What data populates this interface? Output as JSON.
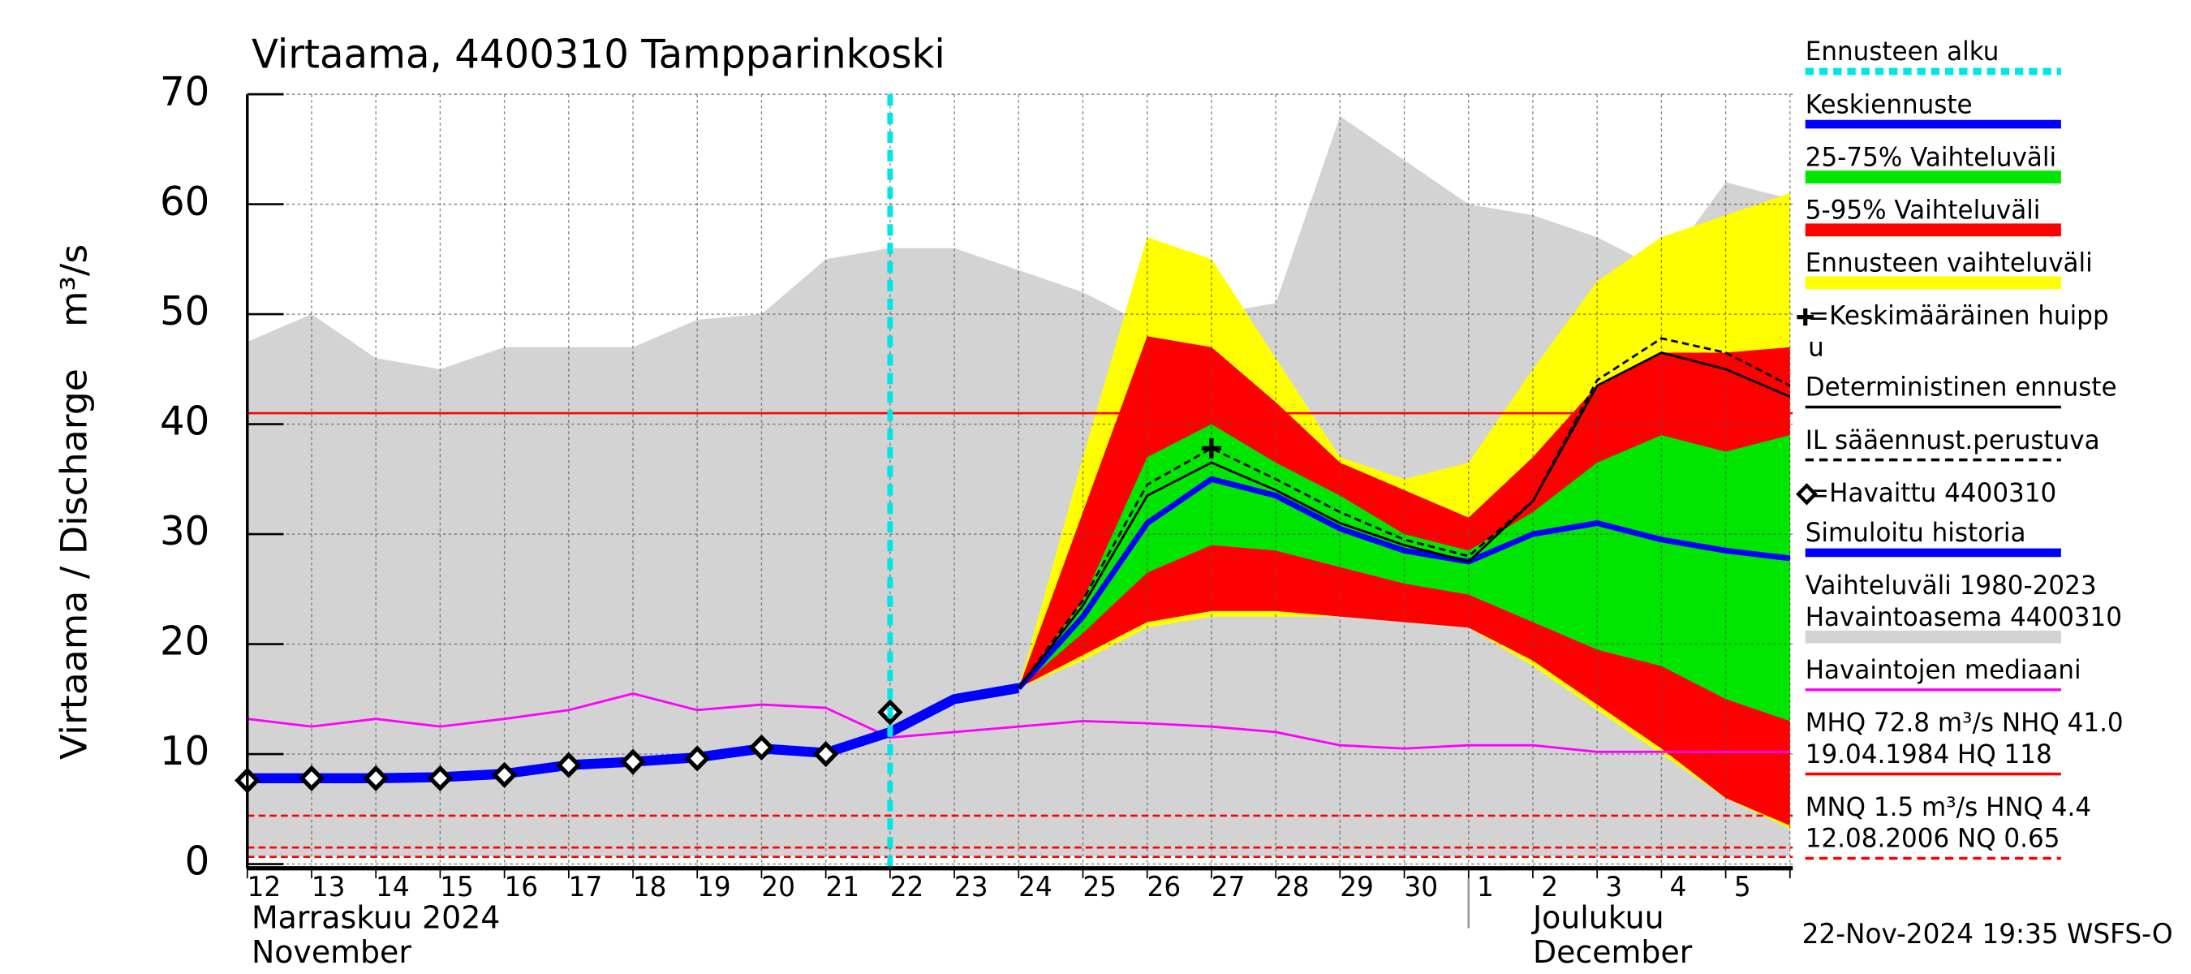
{
  "chart_data": {
    "type": "hydrograph",
    "title": "Virtaama, 4400310 Tampparinkoski",
    "y_label": "Virtaama / Discharge",
    "y_unit": "m³/s",
    "month_labels": [
      {
        "lines": [
          "Marraskuu 2024",
          "November"
        ],
        "at": "12"
      },
      {
        "lines": [
          "Joulukuu",
          "December"
        ],
        "at": "1"
      }
    ],
    "footer": "22-Nov-2024 19:35 WSFS-O",
    "categories": [
      "12",
      "13",
      "14",
      "15",
      "16",
      "17",
      "18",
      "19",
      "20",
      "21",
      "22",
      "23",
      "24",
      "25",
      "26",
      "27",
      "28",
      "29",
      "30",
      "1",
      "2",
      "3",
      "4",
      "5",
      null
    ],
    "ylim": [
      0,
      70
    ],
    "yticks": [
      0,
      10,
      20,
      30,
      40,
      50,
      60,
      70
    ],
    "grid": true,
    "forecast_start": "22",
    "forecast_start_color": "#00e5e5",
    "series": [
      {
        "kind": "band",
        "color": "#d3d3d3",
        "upper": [
          47.5,
          50,
          46,
          45,
          47,
          47,
          47,
          49.5,
          50,
          55,
          56,
          56,
          54,
          52,
          49,
          50,
          51,
          68,
          64,
          60,
          59,
          57,
          54,
          62,
          60.5
        ],
        "lower": [
          0.7,
          0.7,
          0.7,
          0.7,
          0.7,
          0.7,
          0.7,
          0.7,
          0.7,
          0.7,
          0.7,
          0.7,
          0.7,
          0.7,
          0.7,
          0.7,
          0.7,
          0.7,
          0.7,
          0.7,
          0.7,
          0.7,
          0.7,
          0.7,
          0.7
        ]
      },
      {
        "kind": "band",
        "color": "#ffff00",
        "upper": [
          null,
          null,
          null,
          null,
          null,
          null,
          null,
          null,
          null,
          null,
          null,
          null,
          16,
          37,
          57,
          55,
          46,
          37,
          35,
          36.5,
          45,
          53,
          57,
          59,
          61
        ],
        "lower": [
          null,
          null,
          null,
          null,
          null,
          null,
          null,
          null,
          null,
          null,
          null,
          null,
          16,
          18.5,
          21.5,
          22.5,
          22.5,
          22.5,
          22,
          21.5,
          18,
          14,
          10,
          6,
          3.2
        ]
      },
      {
        "kind": "band",
        "color": "#ff0000",
        "upper": [
          null,
          null,
          null,
          null,
          null,
          null,
          null,
          null,
          null,
          null,
          null,
          null,
          16,
          32,
          48,
          47,
          42,
          36.5,
          34,
          31.5,
          37,
          43.5,
          46.5,
          46.5,
          47
        ],
        "lower": [
          null,
          null,
          null,
          null,
          null,
          null,
          null,
          null,
          null,
          null,
          null,
          null,
          16,
          19,
          22,
          23,
          23,
          22.5,
          22,
          21.5,
          18.5,
          14.5,
          10.5,
          6,
          3.5
        ]
      },
      {
        "kind": "band",
        "color": "#00e600",
        "upper": [
          null,
          null,
          null,
          null,
          null,
          null,
          null,
          null,
          null,
          null,
          null,
          null,
          16,
          24,
          37,
          40,
          36.5,
          33.5,
          30,
          28.5,
          32,
          36.5,
          39,
          37.5,
          39
        ],
        "lower": [
          null,
          null,
          null,
          null,
          null,
          null,
          null,
          null,
          null,
          null,
          null,
          null,
          16,
          21,
          26.5,
          29,
          28.5,
          27,
          25.5,
          24.5,
          22,
          19.5,
          18,
          15,
          13
        ]
      },
      {
        "kind": "line",
        "style": "thin",
        "color": "#ff00ff",
        "values": [
          13.2,
          12.5,
          13.2,
          12.5,
          13.2,
          14,
          15.5,
          14,
          14.5,
          14.2,
          11.5,
          12,
          12.5,
          13,
          12.8,
          12.5,
          12,
          10.8,
          10.5,
          10.8,
          10.8,
          10.2,
          10.2,
          10.2,
          10.2
        ]
      },
      {
        "kind": "line",
        "style": "thick",
        "color": "#0000ff",
        "values": [
          7.8,
          7.8,
          7.8,
          7.9,
          8.2,
          9,
          9.3,
          9.7,
          10.5,
          10.1,
          12,
          15,
          16,
          null,
          null,
          null,
          null,
          null,
          null,
          null,
          null,
          null,
          null,
          null,
          null
        ]
      },
      {
        "kind": "line",
        "style": "medium",
        "color": "#0000ff",
        "values": [
          null,
          null,
          null,
          null,
          null,
          null,
          null,
          null,
          null,
          null,
          null,
          null,
          16,
          22.5,
          31,
          35,
          33.5,
          30.5,
          28.5,
          27.5,
          30,
          31,
          29.5,
          28.5,
          27.8
        ]
      },
      {
        "kind": "line",
        "style": "thin",
        "color": "#000000",
        "values": [
          null,
          null,
          null,
          null,
          null,
          null,
          null,
          null,
          null,
          null,
          null,
          null,
          16,
          23.5,
          33.5,
          36.5,
          34,
          31,
          29,
          27.5,
          33,
          43.5,
          46.5,
          45,
          42.5
        ]
      },
      {
        "kind": "line",
        "style": "dashed",
        "color": "#000000",
        "values": [
          null,
          null,
          null,
          null,
          null,
          null,
          null,
          null,
          null,
          null,
          null,
          null,
          16,
          24,
          34.5,
          37.8,
          35,
          32,
          29.5,
          28,
          33,
          44,
          47.8,
          46.5,
          43.5
        ]
      },
      {
        "kind": "markers",
        "color": "#000000",
        "values": [
          7.6,
          7.8,
          7.8,
          7.8,
          8.1,
          9,
          9.3,
          9.6,
          10.6,
          10,
          13.8,
          null,
          null,
          null,
          null,
          null,
          null,
          null,
          null,
          null,
          null,
          null,
          null,
          null,
          null
        ]
      }
    ],
    "mean_peak": {
      "at": "27",
      "value": 37.8
    },
    "reference_lines": [
      {
        "value": 41.0,
        "color": "#ff0000",
        "dashed": false
      },
      {
        "value": 4.4,
        "color": "#ff0000",
        "dashed": true
      },
      {
        "value": 1.5,
        "color": "#ff0000",
        "dashed": true
      },
      {
        "value": 0.65,
        "color": "#ff0000",
        "dashed": true
      }
    ],
    "legend": [
      {
        "lines": [
          "Ennusteen alku"
        ],
        "symbol": "dashed-thick",
        "color": "#00e5e5"
      },
      {
        "lines": [
          "Keskiennuste"
        ],
        "symbol": "line",
        "color": "#0000ff"
      },
      {
        "lines": [
          "25-75% Vaihteluväli"
        ],
        "symbol": "band",
        "color": "#00e600"
      },
      {
        "lines": [
          "5-95% Vaihteluväli"
        ],
        "symbol": "band",
        "color": "#ff0000"
      },
      {
        "lines": [
          "Ennusteen vaihteluväli"
        ],
        "symbol": "band",
        "color": "#ffff00"
      },
      {
        "lines": [
          "=Keskimääräinen huipp",
          "u"
        ],
        "symbol": "plus",
        "color": "#000000"
      },
      {
        "lines": [
          "Deterministinen ennuste"
        ],
        "symbol": "thin",
        "color": "#000000"
      },
      {
        "lines": [
          "IL sääennust.perustuva"
        ],
        "symbol": "dashed",
        "color": "#000000"
      },
      {
        "lines": [
          "=Havaittu 4400310"
        ],
        "symbol": "diamond",
        "color": "#000000"
      },
      {
        "lines": [
          "Simuloitu historia"
        ],
        "symbol": "line",
        "color": "#0000ff"
      },
      {
        "lines": [
          "Vaihteluväli 1980-2023",
          " Havaintoasema 4400310"
        ],
        "symbol": "band",
        "color": "#d3d3d3"
      },
      {
        "lines": [
          "Havaintojen mediaani"
        ],
        "symbol": "thin",
        "color": "#ff00ff"
      },
      {
        "lines": [
          "MHQ 72.8 m³/s NHQ 41.0",
          "19.04.1984 HQ  118"
        ],
        "symbol": "thin",
        "color": "#ff0000"
      },
      {
        "lines": [
          "MNQ  1.5 m³/s HNQ  4.4",
          "12.08.2006 NQ 0.65"
        ],
        "symbol": "dashed",
        "color": "#ff0000"
      }
    ]
  }
}
